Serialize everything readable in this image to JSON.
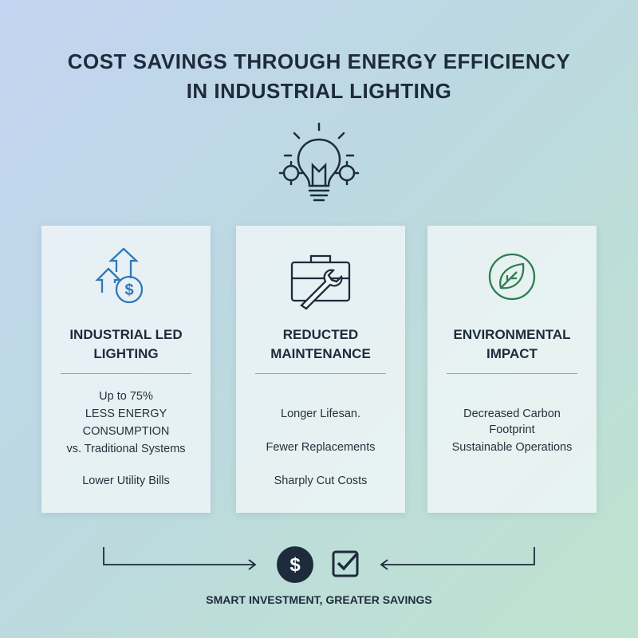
{
  "header": {
    "title": [
      "COST SAVINGS THROUGH ENERGY EFFICIENCY",
      "IN INDUSTRIAL LIGHTING"
    ]
  },
  "cards": [
    {
      "heading": [
        "INDUSTRIAL LED",
        "LIGHTING"
      ],
      "body": [
        [
          "Up to 75%",
          "LESS ENERGY",
          "CONSUMPTION",
          "vs. Traditional Systems"
        ],
        [
          "Lower Utility Bills"
        ]
      ]
    },
    {
      "heading": [
        "REDUCTED",
        "MAINTENANCE"
      ],
      "body": [
        [
          "Longer Lifesan."
        ],
        [
          "Fewer Replacements"
        ],
        [
          "Sharply Cut Costs"
        ]
      ]
    },
    {
      "heading": [
        "ENVIRONMENTAL",
        "IMPACT"
      ],
      "body": [
        [
          "Decreased Carbon",
          "Footprint",
          "Sustainable Operations"
        ]
      ]
    }
  ],
  "footer": {
    "text": "SMART INVESTMENT, GREATER SAVINGS"
  }
}
